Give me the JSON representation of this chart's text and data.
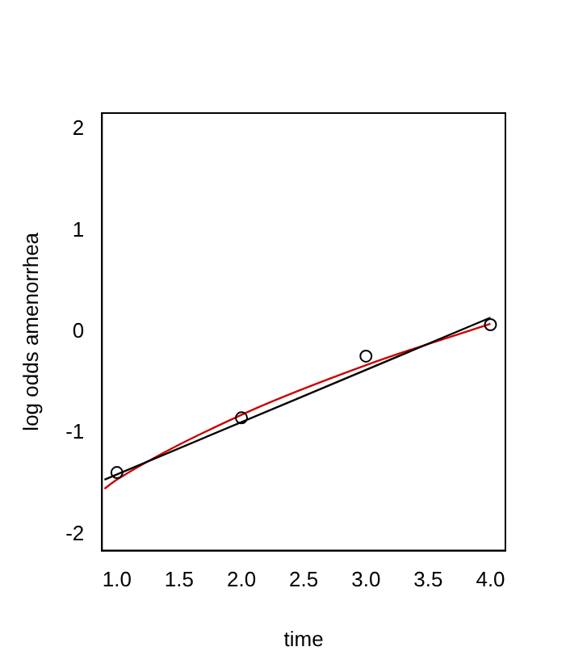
{
  "chart_data": {
    "type": "scatter",
    "xlabel": "time",
    "ylabel": "log odds amenorrhea",
    "xlim": [
      0.88,
      4.12
    ],
    "ylim": [
      -2.16,
      2.16
    ],
    "xticks": [
      {
        "value": 1,
        "label": "1.0"
      },
      {
        "value": 1.5,
        "label": "1.5"
      },
      {
        "value": 2,
        "label": "2.0"
      },
      {
        "value": 2.5,
        "label": "2.5"
      },
      {
        "value": 3,
        "label": "3.0"
      },
      {
        "value": 3.5,
        "label": "3.5"
      },
      {
        "value": 4,
        "label": "4.0"
      }
    ],
    "yticks": [
      -2,
      -1,
      0,
      1,
      2
    ],
    "grid": false,
    "legend": false,
    "series": [
      {
        "color": "#000000",
        "marker": "circle",
        "x": [
          1,
          2,
          3,
          4
        ],
        "values": [
          -1.39,
          -0.85,
          -0.24,
          0.07
        ]
      },
      {
        "type": "line",
        "color": "#000000",
        "marker": "none",
        "x": [
          0.9,
          4
        ],
        "values": [
          -1.46,
          0.14
        ]
      },
      {
        "type": "line",
        "color": "#cc0000",
        "marker": "none",
        "x": [
          0.9,
          1,
          2,
          3,
          4
        ],
        "values": [
          -1.55,
          -1.46,
          -0.82,
          -0.33,
          0.08
        ]
      }
    ]
  }
}
